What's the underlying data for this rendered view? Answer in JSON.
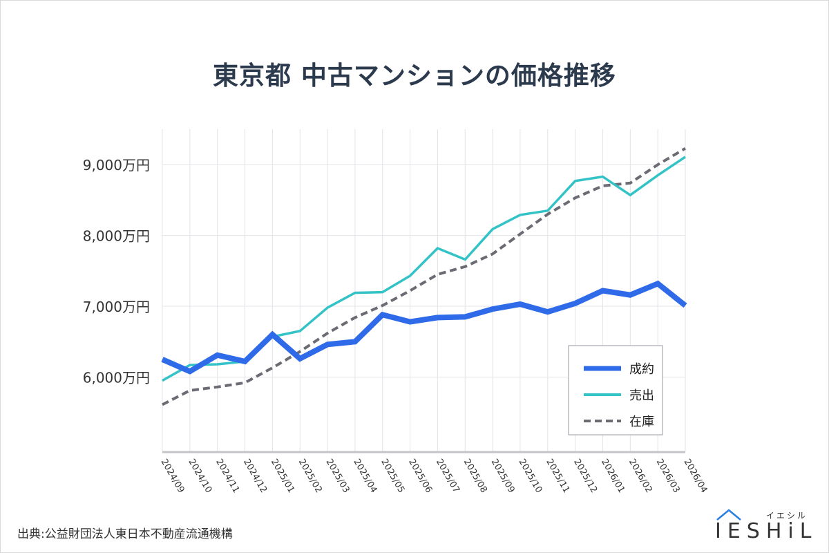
{
  "title": "東京都 中古マンションの価格推移",
  "source": "出典:公益財団法人東日本不動産流通機構",
  "logo": {
    "word": "IESHiL",
    "kana": "イエシル",
    "icon": "house-roof-icon",
    "color": "#2a7de1"
  },
  "chart_data": {
    "type": "line",
    "categories": [
      "2024/09",
      "2024/10",
      "2024/11",
      "2024/12",
      "2025/01",
      "2025/02",
      "2025/03",
      "2025/04",
      "2025/05",
      "2025/06",
      "2025/07",
      "2025/08",
      "2025/09",
      "2025/10",
      "2025/11",
      "2025/12",
      "2026/01",
      "2026/02",
      "2026/03",
      "2026/04"
    ],
    "y_ticks": [
      6000,
      7000,
      8000,
      9000
    ],
    "y_tick_labels": [
      "6,000万円",
      "7,000万円",
      "8,000万円",
      "9,000万円"
    ],
    "ylim": [
      4950,
      9500
    ],
    "grid": true,
    "legend_position": "bottom-right",
    "series": [
      {
        "name": "成約",
        "color": "#2f6be8",
        "style": "solid-thick",
        "values": [
          6250,
          6080,
          6310,
          6220,
          6600,
          6260,
          6460,
          6500,
          6880,
          6780,
          6840,
          6850,
          6960,
          7030,
          6920,
          7040,
          7220,
          7160,
          7320,
          7010
        ]
      },
      {
        "name": "売出",
        "color": "#33c3c6",
        "style": "solid",
        "values": [
          5950,
          6170,
          6180,
          6220,
          6570,
          6650,
          6980,
          7190,
          7200,
          7430,
          7820,
          7660,
          8090,
          8290,
          8350,
          8770,
          8830,
          8570,
          8850,
          9110
        ]
      },
      {
        "name": "在庫",
        "color": "#6b6b73",
        "style": "dashed",
        "values": [
          5610,
          5810,
          5860,
          5920,
          6130,
          6360,
          6620,
          6840,
          7010,
          7220,
          7450,
          7560,
          7740,
          8020,
          8300,
          8530,
          8700,
          8740,
          9000,
          9230
        ]
      }
    ]
  }
}
